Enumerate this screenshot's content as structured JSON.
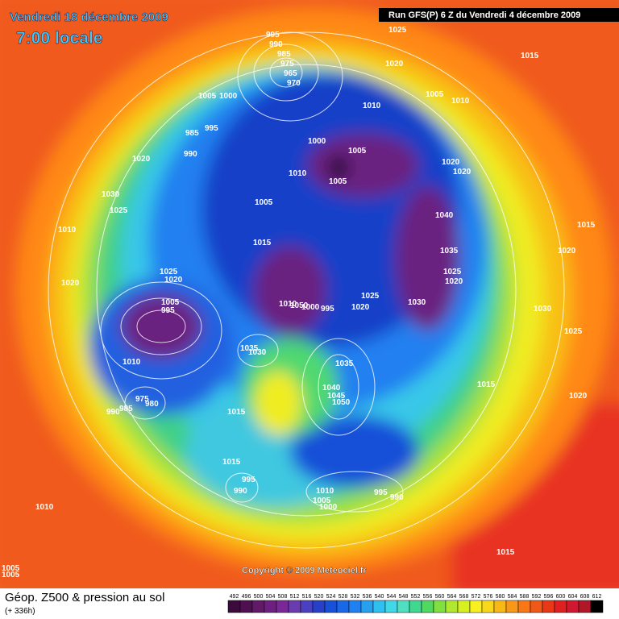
{
  "header": {
    "date": "Vendredi 18 décembre 2009",
    "time": "7:00 locale",
    "run": "Run GFS(P) 6 Z du Vendredi 4 décembre 2009"
  },
  "copyright": "Copyright © 2009 Meteociel.fr",
  "footer": {
    "title": "Géop. Z500 & pression au sol",
    "lead": "(+ 336h)"
  },
  "scale": {
    "values": [
      492,
      496,
      500,
      504,
      508,
      512,
      516,
      520,
      524,
      528,
      532,
      536,
      540,
      544,
      548,
      552,
      556,
      560,
      564,
      568,
      572,
      576,
      580,
      584,
      588,
      592,
      596,
      600,
      604,
      608,
      612
    ],
    "colors": [
      "#3c0a3c",
      "#4e1050",
      "#601a66",
      "#6e2080",
      "#7a2898",
      "#6a3cb0",
      "#4a40c0",
      "#2840c8",
      "#1850d8",
      "#1868e8",
      "#2080f0",
      "#28a0f0",
      "#30c0f0",
      "#40d8e8",
      "#50e0c0",
      "#40d890",
      "#50d860",
      "#80e040",
      "#b0e830",
      "#d8f020",
      "#f8f020",
      "#f8d818",
      "#f8b818",
      "#f89818",
      "#f87818",
      "#f05818",
      "#e83818",
      "#e02020",
      "#d01830",
      "#b01828",
      "#000000"
    ]
  },
  "isobar_labels": [
    "995",
    "990",
    "985",
    "975",
    "965",
    "970",
    "1025",
    "1015",
    "1020",
    "1005",
    "1010",
    "1010",
    "1005",
    "1000",
    "985",
    "995",
    "990",
    "1000",
    "1005",
    "1010",
    "1005",
    "1020",
    "1020",
    "1020",
    "1030",
    "1025",
    "1010",
    "1005",
    "1040",
    "1015",
    "1015",
    "1035",
    "1020",
    "1025",
    "1020",
    "1025",
    "1020",
    "1020",
    "1005",
    "995",
    "1010",
    "1050",
    "1000",
    "995",
    "1025",
    "1020",
    "1030",
    "1030",
    "1025",
    "1010",
    "1035",
    "1030",
    "1035",
    "1040",
    "1045",
    "1050",
    "975",
    "980",
    "990",
    "985",
    "1015",
    "1020",
    "1015",
    "1015",
    "995",
    "990",
    "1010",
    "1005",
    "1000",
    "995",
    "990",
    "1010",
    "1015",
    "1005",
    "1005"
  ]
}
